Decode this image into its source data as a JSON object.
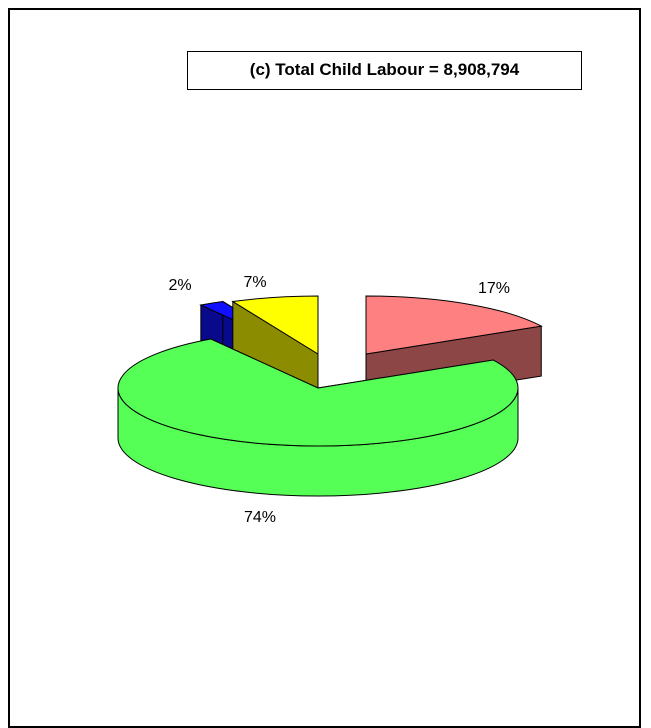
{
  "chart_data": {
    "type": "pie",
    "title": "(c)  Total Child Labour = 8,908,794",
    "slices": [
      {
        "label": "17%",
        "value": 17,
        "color": "#FF8080"
      },
      {
        "label": "74%",
        "value": 74,
        "color": "#55FF55"
      },
      {
        "label": "2%",
        "value": 2,
        "color": "#1010FF"
      },
      {
        "label": "7%",
        "value": 7,
        "color": "#FFFF00"
      }
    ],
    "style": "3d-exploded"
  }
}
